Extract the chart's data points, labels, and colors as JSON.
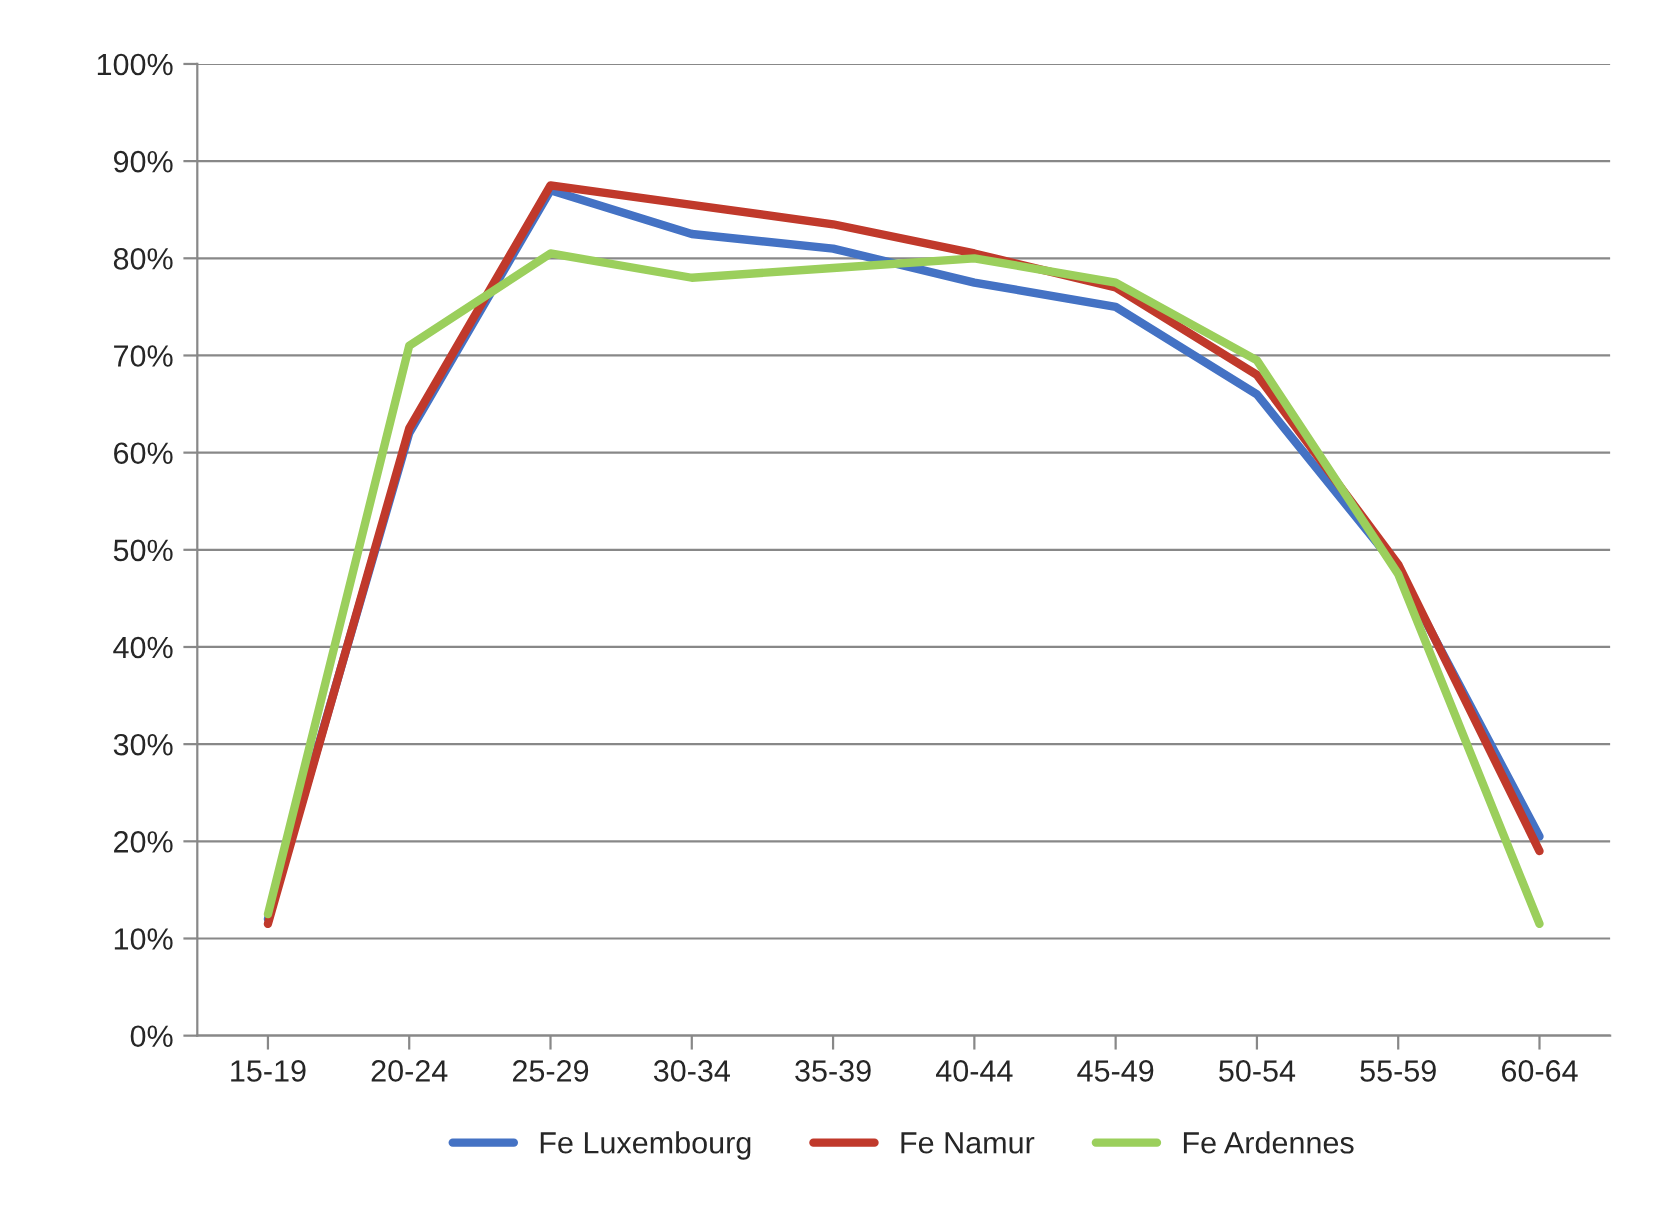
{
  "chart_data": {
    "type": "line",
    "categories": [
      "15-19",
      "20-24",
      "25-29",
      "30-34",
      "35-39",
      "40-44",
      "45-49",
      "50-54",
      "55-59",
      "60-64"
    ],
    "series": [
      {
        "name": "Fe Luxembourg",
        "color": "#4472c4",
        "values": [
          12,
          62,
          87,
          82.5,
          81,
          77.5,
          75,
          66,
          48,
          20.5
        ]
      },
      {
        "name": "Fe Namur",
        "color": "#c0392b",
        "values": [
          11.5,
          62.5,
          87.5,
          85.5,
          83.5,
          80.5,
          77,
          68,
          48.5,
          19
        ]
      },
      {
        "name": "Fe Ardennes",
        "color": "#9bcf5c",
        "values": [
          12.5,
          71,
          80.5,
          78,
          79,
          80,
          77.5,
          69.5,
          47.5,
          11.5
        ]
      }
    ],
    "ylim": [
      0,
      100
    ],
    "yticks": [
      {
        "value": 0,
        "label": "0%"
      },
      {
        "value": 10,
        "label": "10%"
      },
      {
        "value": 20,
        "label": "20%"
      },
      {
        "value": 30,
        "label": "30%"
      },
      {
        "value": 40,
        "label": "40%"
      },
      {
        "value": 50,
        "label": "50%"
      },
      {
        "value": 60,
        "label": "60%"
      },
      {
        "value": 70,
        "label": "70%"
      },
      {
        "value": 80,
        "label": "80%"
      },
      {
        "value": 90,
        "label": "90%"
      },
      {
        "value": 100,
        "label": "100%"
      }
    ],
    "grid": "y",
    "legend": "bottom",
    "marker": "none",
    "line_style": "solid"
  }
}
